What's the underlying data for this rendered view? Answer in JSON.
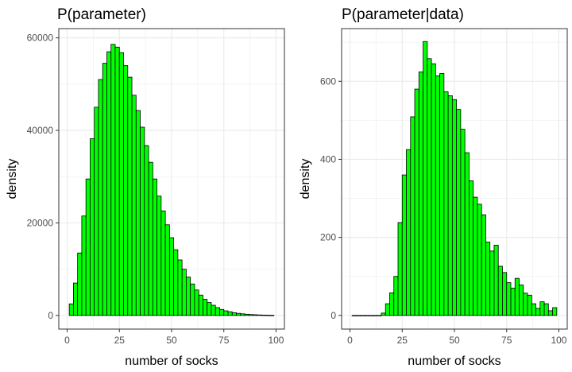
{
  "chart_data": [
    {
      "type": "bar",
      "title": "P(parameter)",
      "xlabel": "number of socks",
      "ylabel": "density",
      "xlim": [
        -4,
        104
      ],
      "ylim": [
        -2950,
        62000
      ],
      "xticks": [
        0,
        25,
        50,
        75,
        100
      ],
      "yticks": [
        0,
        20000,
        40000,
        60000
      ],
      "grid": true,
      "bar_fill": "#00ff00",
      "bar_stroke": "#000000",
      "bins": [
        {
          "x": 2,
          "y": 2500
        },
        {
          "x": 4,
          "y": 7000
        },
        {
          "x": 6,
          "y": 13500
        },
        {
          "x": 8,
          "y": 21500
        },
        {
          "x": 10,
          "y": 29500
        },
        {
          "x": 12,
          "y": 38200
        },
        {
          "x": 14,
          "y": 45000
        },
        {
          "x": 16,
          "y": 51000
        },
        {
          "x": 18,
          "y": 54500
        },
        {
          "x": 20,
          "y": 57000
        },
        {
          "x": 22,
          "y": 58600
        },
        {
          "x": 24,
          "y": 58000
        },
        {
          "x": 26,
          "y": 56800
        },
        {
          "x": 28,
          "y": 54000
        },
        {
          "x": 30,
          "y": 51500
        },
        {
          "x": 32,
          "y": 47600
        },
        {
          "x": 34,
          "y": 44300
        },
        {
          "x": 36,
          "y": 40700
        },
        {
          "x": 38,
          "y": 36700
        },
        {
          "x": 40,
          "y": 33100
        },
        {
          "x": 42,
          "y": 29500
        },
        {
          "x": 44,
          "y": 25800
        },
        {
          "x": 46,
          "y": 22600
        },
        {
          "x": 48,
          "y": 19600
        },
        {
          "x": 50,
          "y": 16800
        },
        {
          "x": 52,
          "y": 14200
        },
        {
          "x": 54,
          "y": 12000
        },
        {
          "x": 56,
          "y": 10000
        },
        {
          "x": 58,
          "y": 8300
        },
        {
          "x": 60,
          "y": 6800
        },
        {
          "x": 62,
          "y": 5500
        },
        {
          "x": 64,
          "y": 4400
        },
        {
          "x": 66,
          "y": 3500
        },
        {
          "x": 68,
          "y": 2800
        },
        {
          "x": 70,
          "y": 2200
        },
        {
          "x": 72,
          "y": 1700
        },
        {
          "x": 74,
          "y": 1300
        },
        {
          "x": 76,
          "y": 1000
        },
        {
          "x": 78,
          "y": 800
        },
        {
          "x": 80,
          "y": 600
        },
        {
          "x": 82,
          "y": 450
        },
        {
          "x": 84,
          "y": 350
        },
        {
          "x": 86,
          "y": 260
        },
        {
          "x": 88,
          "y": 200
        },
        {
          "x": 90,
          "y": 150
        },
        {
          "x": 92,
          "y": 110
        },
        {
          "x": 94,
          "y": 80
        },
        {
          "x": 96,
          "y": 60
        },
        {
          "x": 98,
          "y": 40
        }
      ]
    },
    {
      "type": "bar",
      "title": "P(parameter|data)",
      "xlabel": "number of socks",
      "ylabel": "density",
      "xlim": [
        -4,
        104
      ],
      "ylim": [
        -35,
        735
      ],
      "xticks": [
        0,
        25,
        50,
        75,
        100
      ],
      "yticks": [
        0,
        200,
        400,
        600
      ],
      "grid": true,
      "bar_fill": "#00ff00",
      "bar_stroke": "#000000",
      "bins": [
        {
          "x": 2,
          "y": 0
        },
        {
          "x": 4,
          "y": 0
        },
        {
          "x": 6,
          "y": 0
        },
        {
          "x": 8,
          "y": 0
        },
        {
          "x": 10,
          "y": 0
        },
        {
          "x": 12,
          "y": 0
        },
        {
          "x": 14,
          "y": 0
        },
        {
          "x": 16,
          "y": 6
        },
        {
          "x": 18,
          "y": 30
        },
        {
          "x": 20,
          "y": 58
        },
        {
          "x": 22,
          "y": 100
        },
        {
          "x": 24,
          "y": 238
        },
        {
          "x": 26,
          "y": 360
        },
        {
          "x": 28,
          "y": 425
        },
        {
          "x": 30,
          "y": 509
        },
        {
          "x": 32,
          "y": 580
        },
        {
          "x": 34,
          "y": 624
        },
        {
          "x": 36,
          "y": 702
        },
        {
          "x": 38,
          "y": 658
        },
        {
          "x": 40,
          "y": 645
        },
        {
          "x": 42,
          "y": 614
        },
        {
          "x": 44,
          "y": 620
        },
        {
          "x": 46,
          "y": 573
        },
        {
          "x": 48,
          "y": 563
        },
        {
          "x": 50,
          "y": 553
        },
        {
          "x": 52,
          "y": 528
        },
        {
          "x": 54,
          "y": 477
        },
        {
          "x": 56,
          "y": 417
        },
        {
          "x": 58,
          "y": 345
        },
        {
          "x": 60,
          "y": 303
        },
        {
          "x": 62,
          "y": 285
        },
        {
          "x": 64,
          "y": 258
        },
        {
          "x": 66,
          "y": 188
        },
        {
          "x": 68,
          "y": 165
        },
        {
          "x": 70,
          "y": 180
        },
        {
          "x": 72,
          "y": 126
        },
        {
          "x": 74,
          "y": 110
        },
        {
          "x": 76,
          "y": 84
        },
        {
          "x": 78,
          "y": 70
        },
        {
          "x": 80,
          "y": 95
        },
        {
          "x": 82,
          "y": 78
        },
        {
          "x": 84,
          "y": 57
        },
        {
          "x": 86,
          "y": 52
        },
        {
          "x": 88,
          "y": 30
        },
        {
          "x": 90,
          "y": 18
        },
        {
          "x": 92,
          "y": 35
        },
        {
          "x": 94,
          "y": 30
        },
        {
          "x": 96,
          "y": 12
        },
        {
          "x": 98,
          "y": 20
        }
      ]
    }
  ]
}
